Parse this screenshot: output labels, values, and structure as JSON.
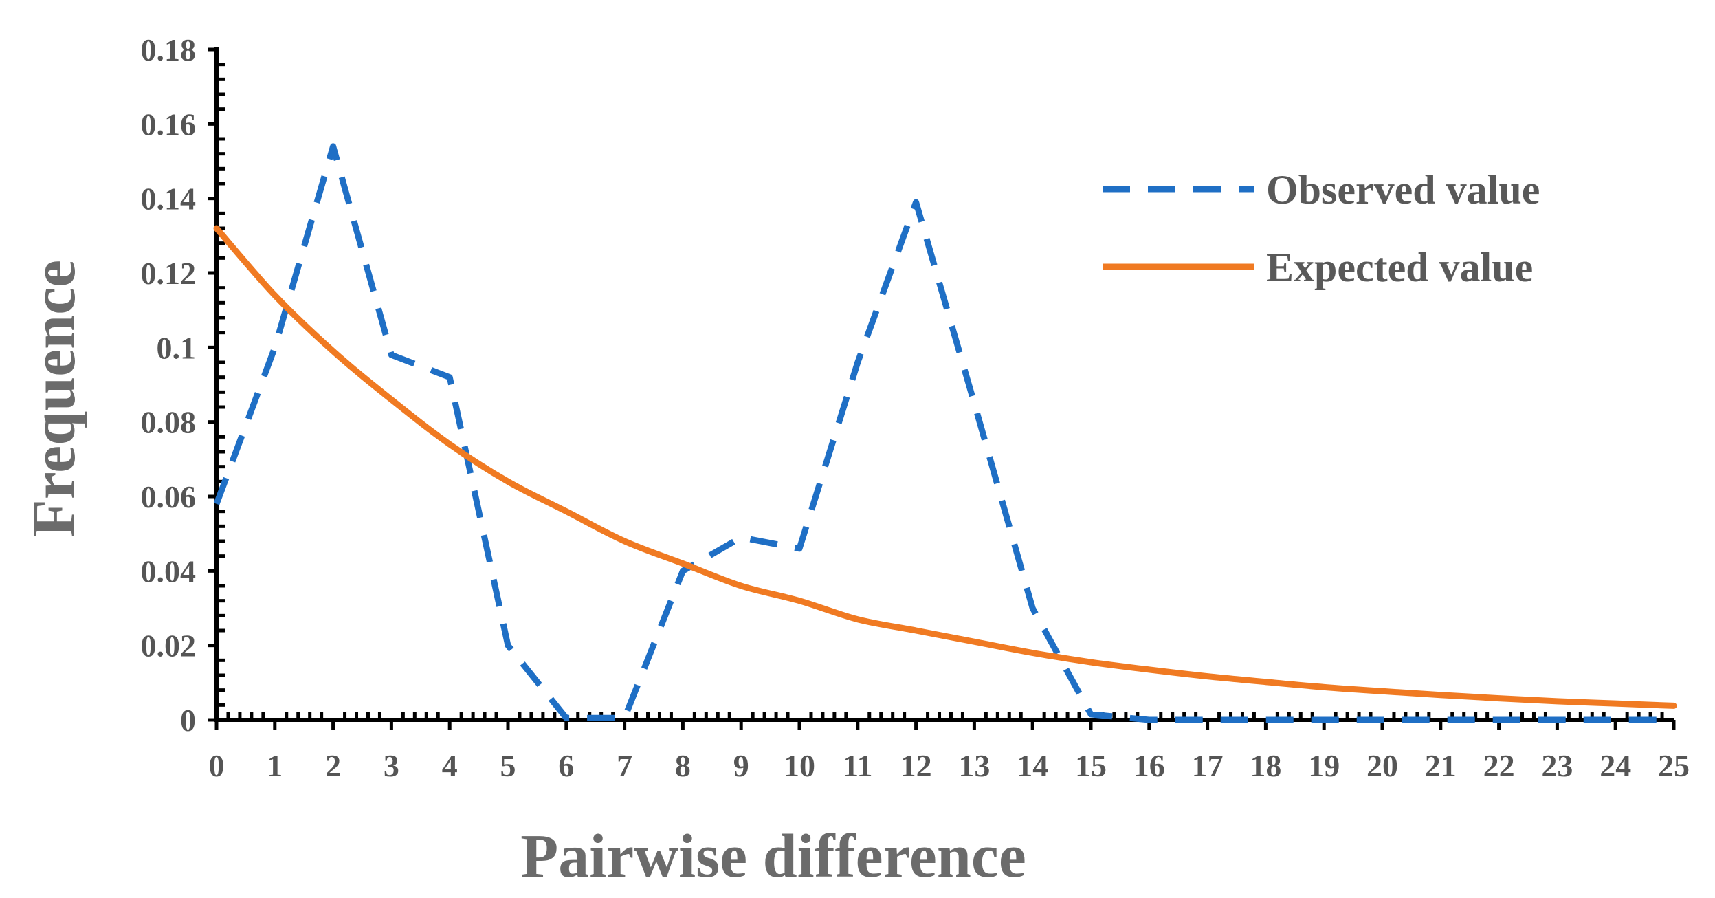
{
  "chart_data": {
    "type": "line",
    "title": "",
    "xlabel": "Pairwise difference",
    "ylabel": "Frequence",
    "xlim": [
      0,
      25
    ],
    "ylim": [
      0,
      0.18
    ],
    "x_ticks": [
      "0",
      "1",
      "2",
      "3",
      "4",
      "5",
      "6",
      "7",
      "8",
      "9",
      "10",
      "11",
      "12",
      "13",
      "14",
      "15",
      "16",
      "17",
      "18",
      "19",
      "20",
      "21",
      "22",
      "23",
      "24",
      "25"
    ],
    "y_ticks": [
      "0",
      "0.02",
      "0.04",
      "0.06",
      "0.08",
      "0.1",
      "0.12",
      "0.14",
      "0.16",
      "0.18"
    ],
    "grid": false,
    "legend_position": "top-right",
    "series": [
      {
        "name": "Observed value",
        "style": "dashed",
        "color": "#1f6fc5",
        "x": [
          0,
          1,
          2,
          3,
          4,
          5,
          6,
          7,
          8,
          9,
          10,
          11,
          12,
          13,
          14,
          15,
          16,
          17,
          18,
          19,
          20,
          21,
          22,
          23,
          24,
          25
        ],
        "values": [
          0.058,
          0.1,
          0.154,
          0.098,
          0.092,
          0.02,
          0.0005,
          0.0005,
          0.04,
          0.049,
          0.046,
          0.096,
          0.139,
          0.085,
          0.03,
          0.0015,
          0,
          0,
          0,
          0,
          0,
          0,
          0,
          0,
          0,
          0
        ]
      },
      {
        "name": "Expected value",
        "style": "solid",
        "color": "#f07a22",
        "x": [
          0,
          1,
          2,
          3,
          4,
          5,
          6,
          7,
          8,
          9,
          10,
          11,
          12,
          13,
          14,
          15,
          16,
          17,
          18,
          19,
          20,
          21,
          22,
          23,
          24,
          25
        ],
        "values": [
          0.132,
          0.114,
          0.099,
          0.086,
          0.074,
          0.064,
          0.056,
          0.048,
          0.042,
          0.036,
          0.032,
          0.027,
          0.024,
          0.021,
          0.018,
          0.0155,
          0.0135,
          0.0117,
          0.0102,
          0.0088,
          0.0077,
          0.0067,
          0.0058,
          0.005,
          0.0044,
          0.0038
        ]
      }
    ]
  }
}
